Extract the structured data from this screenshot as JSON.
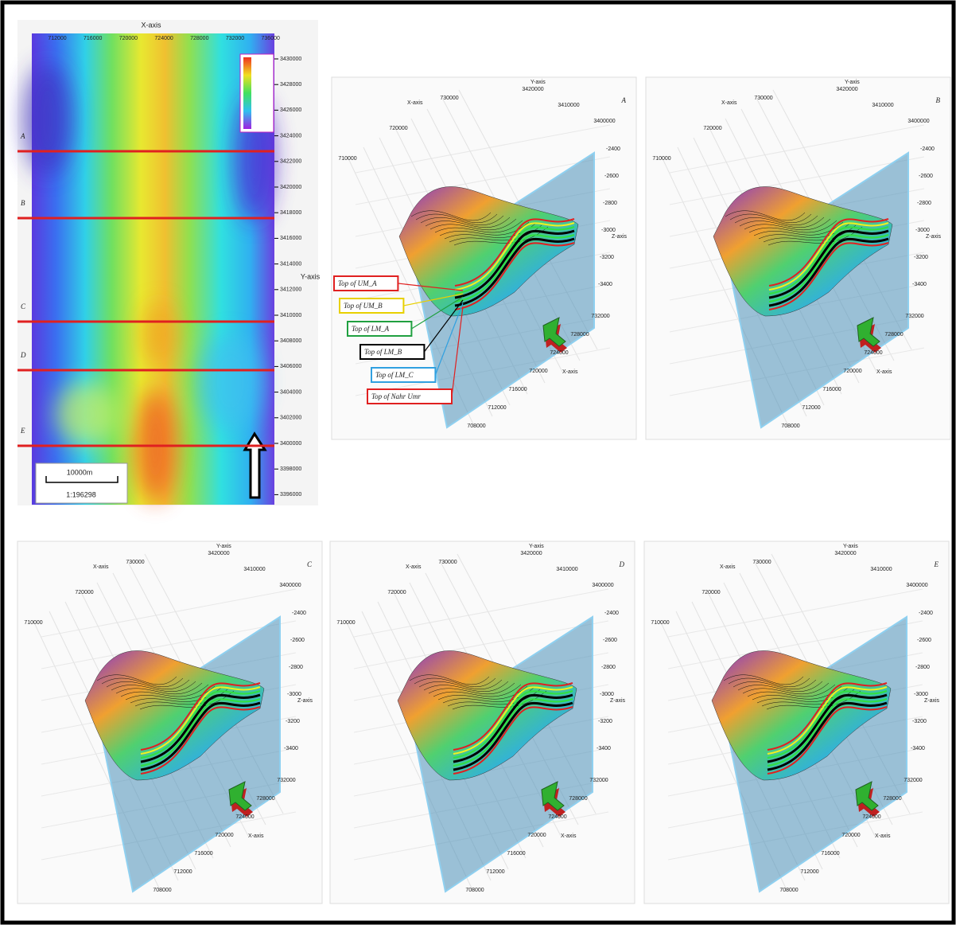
{
  "map": {
    "x_axis_label": "X-axis",
    "y_axis_label": "Y-axis",
    "x_ticks": [
      "712000",
      "716000",
      "720000",
      "724000",
      "728000",
      "732000",
      "736000"
    ],
    "y_ticks": [
      "3430000",
      "3428000",
      "3426000",
      "3424000",
      "3422000",
      "3420000",
      "3418000",
      "3416000",
      "3414000",
      "3412000",
      "3410000",
      "3408000",
      "3406000",
      "3404000",
      "3402000",
      "3400000",
      "3398000",
      "3396000"
    ],
    "sections": [
      "A",
      "B",
      "C",
      "D",
      "E"
    ],
    "scale_length": "10000m",
    "scale_ratio": "1:196298"
  },
  "panels": [
    {
      "label": "A",
      "x_axis_label": "X-axis",
      "y_axis_label": "Y-axis",
      "z_axis_label": "Z-axis",
      "x_ticks_top": [
        "730000",
        "720000",
        "710000"
      ],
      "x_ticks_bottom": [
        "732000",
        "728000",
        "724000",
        "720000",
        "716000",
        "712000",
        "708000"
      ],
      "y_ticks": [
        "3420000",
        "3410000",
        "3400000"
      ],
      "z_ticks": [
        "-2400",
        "-2600",
        "-2800",
        "-3000",
        "-3200",
        "-3400"
      ],
      "annotations": [
        {
          "text": "Top of UM_A",
          "color": "#e02020"
        },
        {
          "text": "Top of UM_B",
          "color": "#e8d000"
        },
        {
          "text": "Top of LM_A",
          "color": "#20a040"
        },
        {
          "text": "Top of LM_B",
          "color": "#000000"
        },
        {
          "text": "Top of LM_C",
          "color": "#30a0e0"
        },
        {
          "text": "Top of Nahr Umr",
          "color": "#e02020"
        }
      ]
    },
    {
      "label": "B",
      "x_axis_label": "X-axis",
      "y_axis_label": "Y-axis",
      "z_axis_label": "Z-axis",
      "x_ticks_top": [
        "730000",
        "720000",
        "710000"
      ],
      "x_ticks_bottom": [
        "732000",
        "728000",
        "724000",
        "720000",
        "716000",
        "712000",
        "708000"
      ],
      "y_ticks": [
        "3420000",
        "3410000",
        "3400000"
      ],
      "z_ticks": [
        "-2400",
        "-2600",
        "-2800",
        "-3000",
        "-3200",
        "-3400"
      ]
    },
    {
      "label": "C",
      "x_axis_label": "X-axis",
      "y_axis_label": "Y-axis",
      "z_axis_label": "Z-axis",
      "x_ticks_top": [
        "730000",
        "720000",
        "710000"
      ],
      "x_ticks_bottom": [
        "732000",
        "728000",
        "724000",
        "720000",
        "716000",
        "712000",
        "708000"
      ],
      "y_ticks": [
        "3420000",
        "3410000",
        "3400000"
      ],
      "z_ticks": [
        "-2400",
        "-2600",
        "-2800",
        "-3000",
        "-3200",
        "-3400"
      ]
    },
    {
      "label": "D",
      "x_axis_label": "X-axis",
      "y_axis_label": "Y-axis",
      "z_axis_label": "Z-axis",
      "x_ticks_top": [
        "730000",
        "720000",
        "710000"
      ],
      "x_ticks_bottom": [
        "732000",
        "728000",
        "724000",
        "720000",
        "716000",
        "712000",
        "708000"
      ],
      "y_ticks": [
        "3420000",
        "3410000",
        "3400000"
      ],
      "z_ticks": [
        "-2400",
        "-2600",
        "-2800",
        "-3000",
        "-3200",
        "-3400"
      ]
    },
    {
      "label": "E",
      "x_axis_label": "X-axis",
      "y_axis_label": "Y-axis",
      "z_axis_label": "Z-axis",
      "x_ticks_top": [
        "730000",
        "720000",
        "710000"
      ],
      "x_ticks_bottom": [
        "732000",
        "728000",
        "724000",
        "720000",
        "716000",
        "712000",
        "708000"
      ],
      "y_ticks": [
        "3420000",
        "3410000",
        "3400000"
      ],
      "z_ticks": [
        "-2400",
        "-2600",
        "-2800",
        "-3000",
        "-3200",
        "-3400"
      ]
    }
  ]
}
